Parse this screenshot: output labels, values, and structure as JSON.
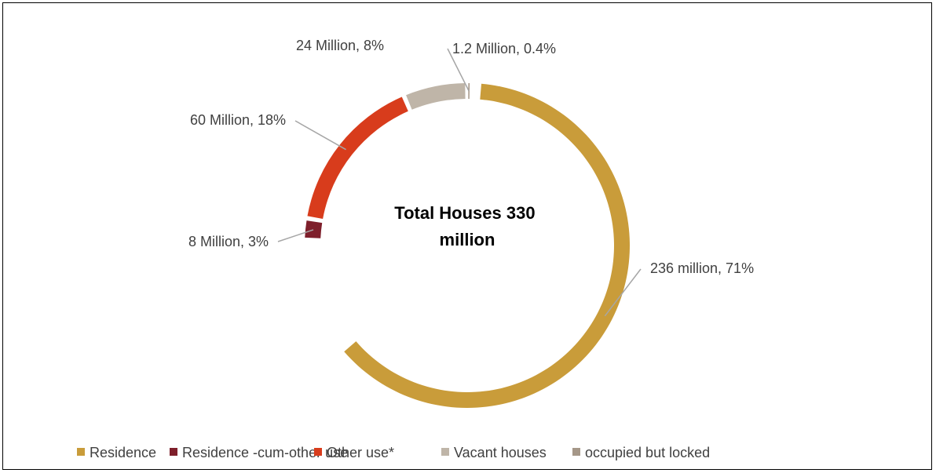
{
  "chart_data": {
    "type": "pie",
    "subtype": "doughnut",
    "center_title_lines": [
      "Total Houses 330",
      "million"
    ],
    "slices": [
      {
        "name": "Residence",
        "value": 236,
        "percent": 71,
        "label": "236 million, 71%",
        "color": "#C99C3A"
      },
      {
        "name": "Residence -cum-other use",
        "value": 8,
        "percent": 3,
        "label": "8 Million, 3%",
        "color": "#7E1F2B"
      },
      {
        "name": "Other use*",
        "value": 60,
        "percent": 18,
        "label": "60 Million, 18%",
        "color": "#D83C1C"
      },
      {
        "name": "Vacant houses",
        "value": 24,
        "percent": 8,
        "label": "24 Million, 8%",
        "color": "#BFB5A8"
      },
      {
        "name": "occupied but locked",
        "value": 1.2,
        "percent": 0.4,
        "label": "1.2 Million, 0.4%",
        "color": "#A59788"
      }
    ],
    "legend": {
      "position": "bottom",
      "entries": [
        "Residence",
        "Residence -cum-other use",
        "Other use*",
        "Vacant houses",
        "occupied but locked"
      ]
    }
  }
}
